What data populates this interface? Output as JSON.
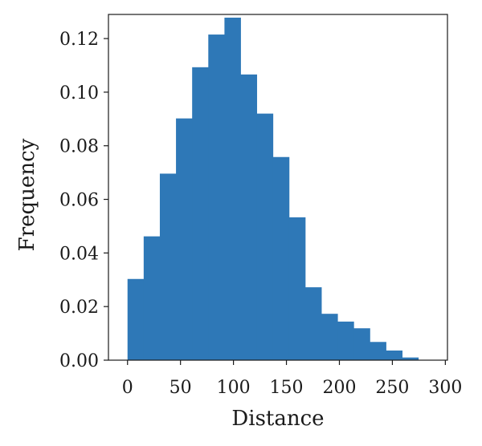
{
  "chart_data": {
    "type": "bar",
    "title": "",
    "xlabel": "Distance",
    "ylabel": "Frequency",
    "xlim": [
      -18,
      302
    ],
    "ylim": [
      0,
      0.129
    ],
    "bar_color": "#2e78b7",
    "bin_edges": [
      0,
      15.25,
      30.5,
      45.75,
      61,
      76.25,
      91.5,
      106.75,
      122,
      137.25,
      152.5,
      167.75,
      183,
      198.25,
      213.5,
      228.75,
      244,
      259.25
    ],
    "values": [
      0.0303,
      0.0462,
      0.0696,
      0.0902,
      0.1093,
      0.1215,
      0.1278,
      0.1066,
      0.092,
      0.0758,
      0.0533,
      0.0272,
      0.0173,
      0.0144,
      0.0119,
      0.0068,
      0.0036,
      0.001
    ],
    "xticks": [
      0,
      50,
      100,
      150,
      200,
      250,
      300
    ],
    "xtick_labels": [
      "0",
      "50",
      "100",
      "150",
      "200",
      "250",
      "300"
    ],
    "yticks": [
      0,
      0.02,
      0.04,
      0.06,
      0.08,
      0.1,
      0.12
    ],
    "ytick_labels": [
      "0.00",
      "0.02",
      "0.04",
      "0.06",
      "0.08",
      "0.10",
      "0.12"
    ],
    "grid": false,
    "legend": "none"
  }
}
